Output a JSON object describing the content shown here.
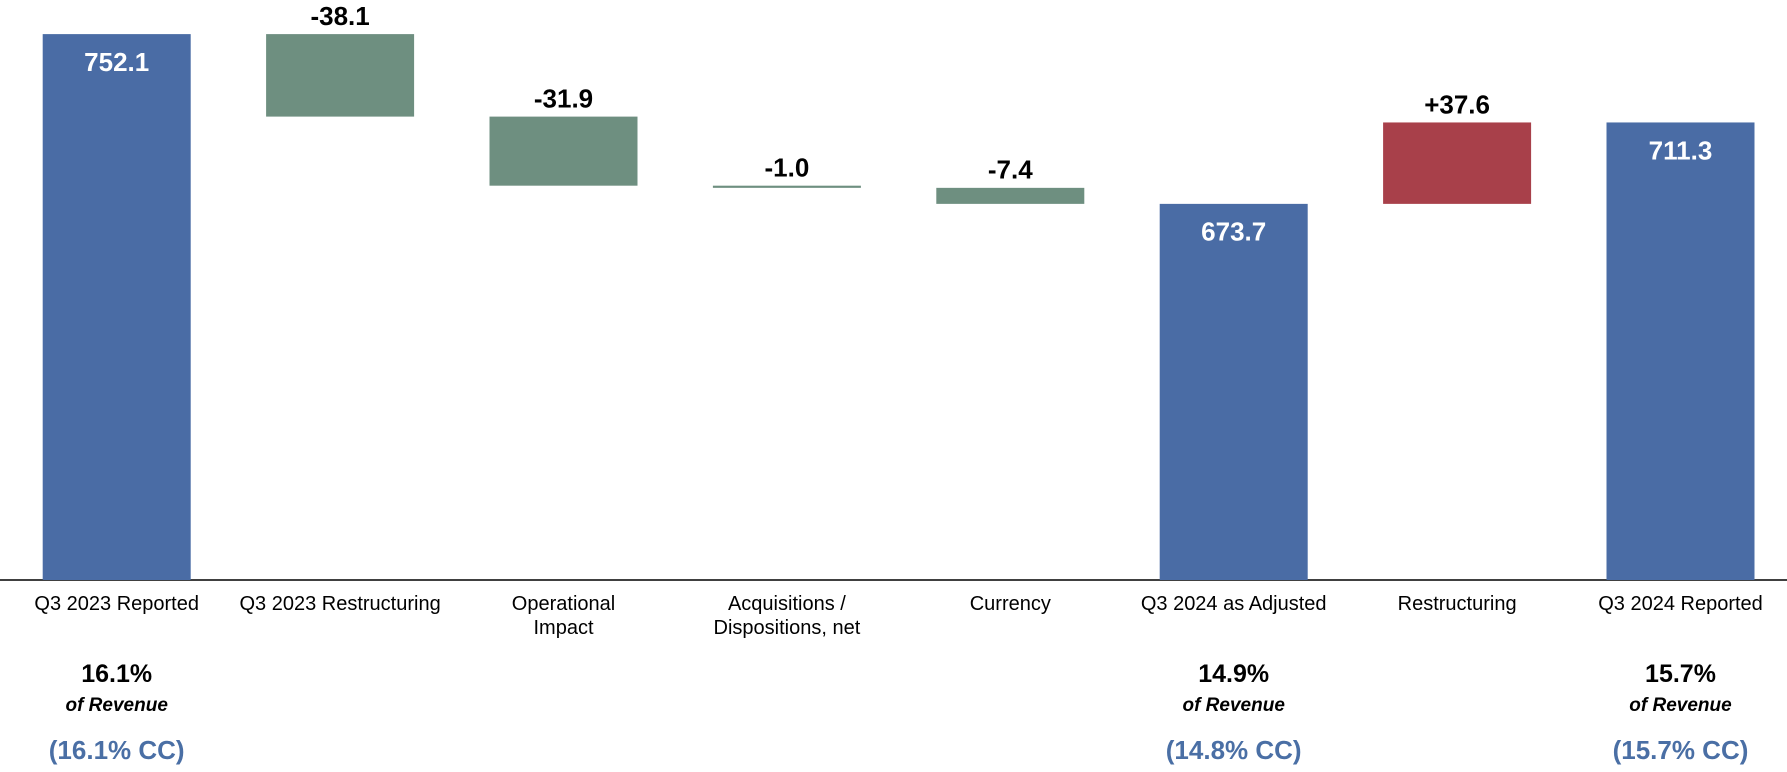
{
  "chart_data": {
    "type": "waterfall",
    "categories": [
      "Q3 2023 Reported",
      "Q3 2023 Restructuring",
      "Operational\nImpact",
      "Acquisitions /\nDispositions, net",
      "Currency",
      "Q3 2024 as Adjusted",
      "Restructuring",
      "Q3 2024 Reported"
    ],
    "values": [
      752.1,
      -38.1,
      -31.9,
      -1.0,
      -7.4,
      673.7,
      37.6,
      711.3
    ],
    "value_labels": [
      "752.1",
      "-38.1",
      "-31.9",
      "-1.0",
      "-7.4",
      "673.7",
      "+37.6",
      "711.3"
    ],
    "measure": [
      "absolute",
      "relative",
      "relative",
      "relative",
      "relative",
      "absolute",
      "relative",
      "absolute"
    ],
    "colors": {
      "total": "#4a6ca5",
      "decrease": "#6e8f80",
      "increase": "#a8404a"
    },
    "ylim": [
      500,
      760
    ],
    "margin_of_revenue": [
      "16.1%",
      null,
      null,
      null,
      null,
      "14.9%",
      null,
      "15.7%"
    ],
    "margin_label": "of Revenue",
    "margin_cc": [
      "(16.1% CC)",
      null,
      null,
      null,
      null,
      "(14.8% CC)",
      null,
      "(15.7% CC)"
    ]
  }
}
